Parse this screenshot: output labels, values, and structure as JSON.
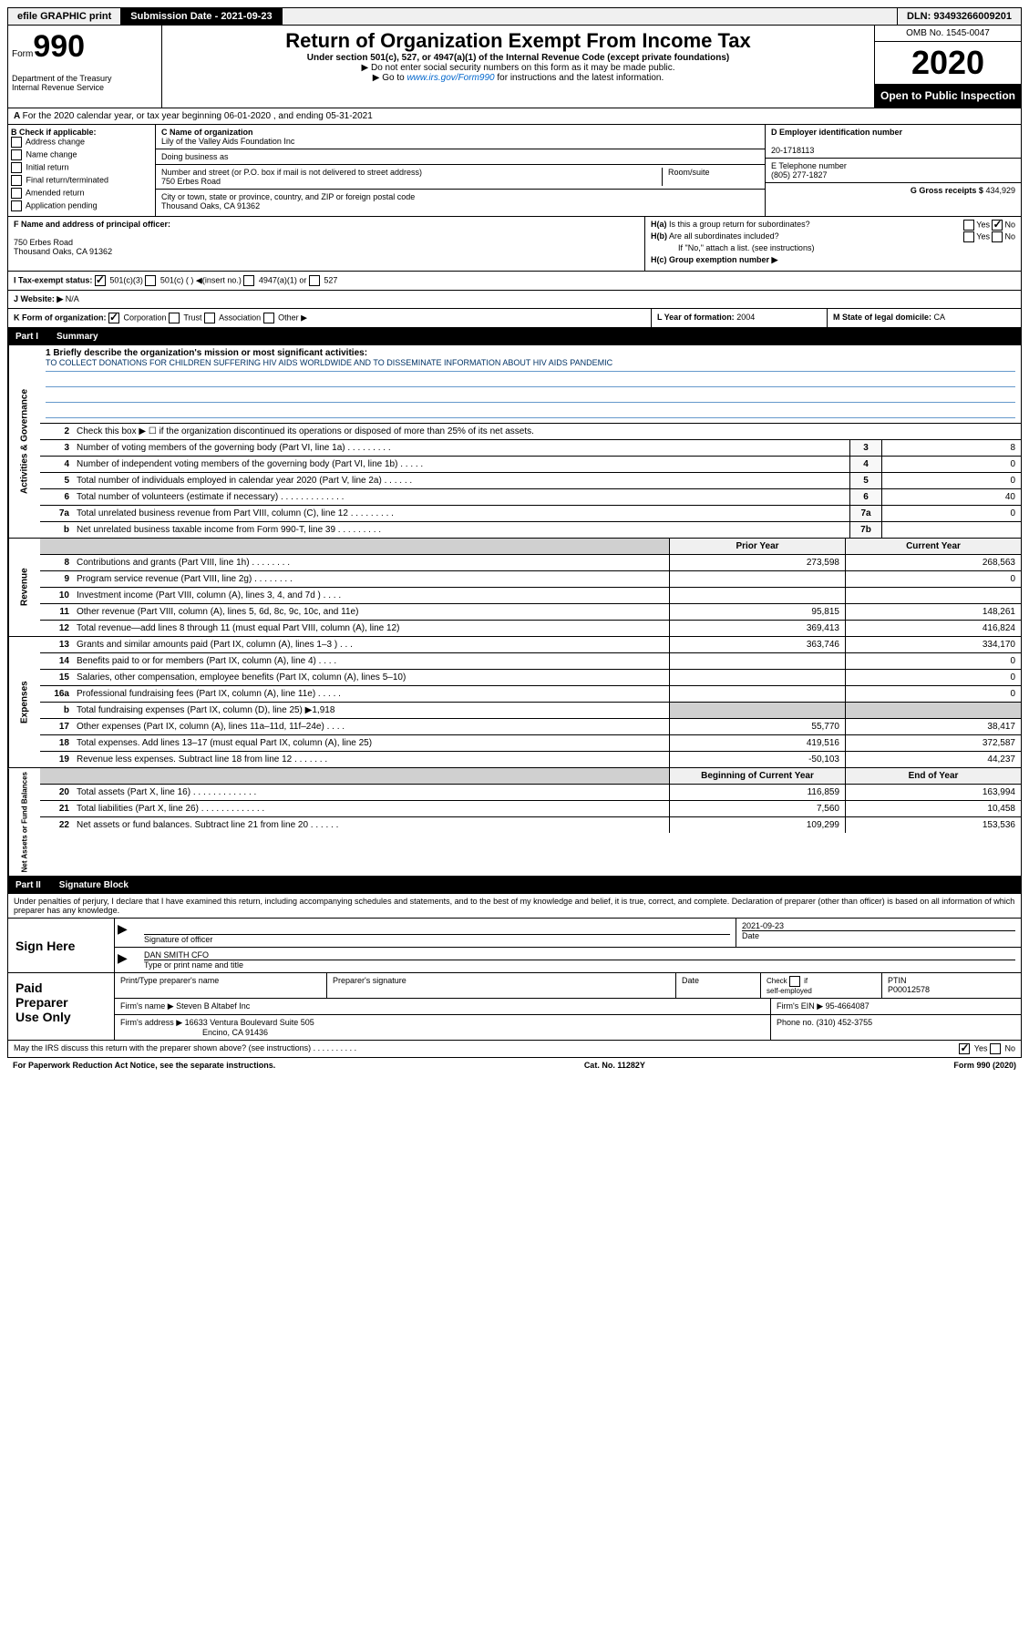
{
  "topbar": {
    "efile": "efile GRAPHIC print",
    "submission": "Submission Date - 2021-09-23",
    "dln": "DLN: 93493266009201"
  },
  "header": {
    "form_prefix": "Form",
    "form_no": "990",
    "dept": "Department of the Treasury\nInternal Revenue Service",
    "title": "Return of Organization Exempt From Income Tax",
    "sub1": "Under section 501(c), 527, or 4947(a)(1) of the Internal Revenue Code (except private foundations)",
    "sub2": "▶ Do not enter social security numbers on this form as it may be made public.",
    "sub3_pre": "▶ Go to ",
    "sub3_link": "www.irs.gov/Form990",
    "sub3_post": " for instructions and the latest information.",
    "omb": "OMB No. 1545-0047",
    "year": "2020",
    "inspect": "Open to Public Inspection"
  },
  "line_a": "For the 2020 calendar year, or tax year beginning 06-01-2020    , and ending 05-31-2021",
  "col_b": {
    "title": "B Check if applicable:",
    "opts": [
      "Address change",
      "Name change",
      "Initial return",
      "Final return/terminated",
      "Amended return",
      "Application pending"
    ]
  },
  "col_c": {
    "c_lbl": "C Name of organization",
    "c_val": "Lily of the Valley Aids Foundation Inc",
    "dba": "Doing business as",
    "addr_lbl": "Number and street (or P.O. box if mail is not delivered to street address)",
    "room": "Room/suite",
    "addr_val": "750 Erbes Road",
    "city_lbl": "City or town, state or province, country, and ZIP or foreign postal code",
    "city_val": "Thousand Oaks, CA  91362"
  },
  "col_d": {
    "d_lbl": "D Employer identification number",
    "d_val": "20-1718113",
    "e_lbl": "E Telephone number",
    "e_val": "(805) 277-1827",
    "g_lbl": "G Gross receipts $",
    "g_val": "434,929"
  },
  "col_f": {
    "lbl": "F  Name and address of principal officer:",
    "line1": "750 Erbes Road",
    "line2": "Thousand Oaks, CA  91362"
  },
  "col_h": {
    "ha": "H(a)  Is this a group return for subordinates?",
    "hb": "H(b)  Are all subordinates included?",
    "hb_note": "If \"No,\" attach a list. (see instructions)",
    "hc": "H(c)  Group exemption number ▶"
  },
  "row_i": {
    "lbl": "I    Tax-exempt status:",
    "opts": "501(c)(3)        501(c) (  ) ◀(insert no.)        4947(a)(1) or        527"
  },
  "row_j": {
    "lbl": "J   Website: ▶",
    "val": "N/A"
  },
  "row_k": {
    "lbl": "K Form of organization:",
    "opts": "Corporation       Trust       Association       Other ▶",
    "l_lbl": "L Year of formation:",
    "l_val": "2004",
    "m_lbl": "M State of legal domicile:",
    "m_val": "CA"
  },
  "part1": {
    "pt": "Part I",
    "title": "Summary"
  },
  "mission": {
    "lbl": "1  Briefly describe the organization's mission or most significant activities:",
    "text": "TO COLLECT DONATIONS FOR CHILDREN SUFFERING HIV AIDS WORLDWIDE AND TO DISSEMINATE INFORMATION ABOUT HIV AIDS PANDEMIC"
  },
  "governance": {
    "label": "Activities & Governance",
    "line2": "Check this box ▶ ☐  if the organization discontinued its operations or disposed of more than 25% of its net assets.",
    "rows": [
      {
        "n": "3",
        "d": "Number of voting members of the governing body (Part VI, line 1a)  .  .  .  .  .  .  .  .  .",
        "box": "3",
        "v": "8"
      },
      {
        "n": "4",
        "d": "Number of independent voting members of the governing body (Part VI, line 1b)   .  .  .  .  .",
        "box": "4",
        "v": "0"
      },
      {
        "n": "5",
        "d": "Total number of individuals employed in calendar year 2020 (Part V, line 2a)    .  .  .  .  .  .",
        "box": "5",
        "v": "0"
      },
      {
        "n": "6",
        "d": "Total number of volunteers (estimate if necessary)    .  .  .  .  .  .  .  .  .  .  .  .  .",
        "box": "6",
        "v": "40"
      },
      {
        "n": "7a",
        "d": "Total unrelated business revenue from Part VIII, column (C), line 12  .  .  .  .  .  .  .  .  .",
        "box": "7a",
        "v": "0"
      },
      {
        "n": "b",
        "d": "Net unrelated business taxable income from Form 990-T, line 39   .  .  .  .  .  .  .  .  .",
        "box": "7b",
        "v": ""
      }
    ]
  },
  "revenue": {
    "label": "Revenue",
    "header": {
      "prior": "Prior Year",
      "current": "Current Year"
    },
    "rows": [
      {
        "n": "8",
        "d": "Contributions and grants (Part VIII, line 1h)   .  .  .  .  .  .  .  .",
        "p": "273,598",
        "c": "268,563"
      },
      {
        "n": "9",
        "d": "Program service revenue (Part VIII, line 2g)   .  .  .  .  .  .  .  .",
        "p": "",
        "c": "0"
      },
      {
        "n": "10",
        "d": "Investment income (Part VIII, column (A), lines 3, 4, and 7d )   .  .  .  .",
        "p": "",
        "c": ""
      },
      {
        "n": "11",
        "d": "Other revenue (Part VIII, column (A), lines 5, 6d, 8c, 9c, 10c, and 11e)",
        "p": "95,815",
        "c": "148,261"
      },
      {
        "n": "12",
        "d": "Total revenue—add lines 8 through 11 (must equal Part VIII, column (A), line 12)",
        "p": "369,413",
        "c": "416,824"
      }
    ]
  },
  "expenses": {
    "label": "Expenses",
    "rows": [
      {
        "n": "13",
        "d": "Grants and similar amounts paid (Part IX, column (A), lines 1–3 )  .  .  .",
        "p": "363,746",
        "c": "334,170"
      },
      {
        "n": "14",
        "d": "Benefits paid to or for members (Part IX, column (A), line 4)   .  .  .  .",
        "p": "",
        "c": "0"
      },
      {
        "n": "15",
        "d": "Salaries, other compensation, employee benefits (Part IX, column (A), lines 5–10)",
        "p": "",
        "c": "0"
      },
      {
        "n": "16a",
        "d": "Professional fundraising fees (Part IX, column (A), line 11e)   .  .  .  .  .",
        "p": "",
        "c": "0"
      },
      {
        "n": "b",
        "d": "Total fundraising expenses (Part IX, column (D), line 25) ▶1,918",
        "p": "shaded",
        "c": "shaded"
      },
      {
        "n": "17",
        "d": "Other expenses (Part IX, column (A), lines 11a–11d, 11f–24e)  .  .  .  .",
        "p": "55,770",
        "c": "38,417"
      },
      {
        "n": "18",
        "d": "Total expenses. Add lines 13–17 (must equal Part IX, column (A), line 25)",
        "p": "419,516",
        "c": "372,587"
      },
      {
        "n": "19",
        "d": "Revenue less expenses. Subtract line 18 from line 12  .  .  .  .  .  .  .",
        "p": "-50,103",
        "c": "44,237"
      }
    ]
  },
  "netassets": {
    "label": "Net Assets or Fund Balances",
    "header": {
      "prior": "Beginning of Current Year",
      "current": "End of Year"
    },
    "rows": [
      {
        "n": "20",
        "d": "Total assets (Part X, line 16)  .  .  .  .  .  .  .  .  .  .  .  .  .",
        "p": "116,859",
        "c": "163,994"
      },
      {
        "n": "21",
        "d": "Total liabilities (Part X, line 26)  .  .  .  .  .  .  .  .  .  .  .  .  .",
        "p": "7,560",
        "c": "10,458"
      },
      {
        "n": "22",
        "d": "Net assets or fund balances. Subtract line 21 from line 20  .  .  .  .  .  .",
        "p": "109,299",
        "c": "153,536"
      }
    ]
  },
  "part2": {
    "pt": "Part II",
    "title": "Signature Block"
  },
  "declare": "Under penalties of perjury, I declare that I have examined this return, including accompanying schedules and statements, and to the best of my knowledge and belief, it is true, correct, and complete. Declaration of preparer (other than officer) is based on all information of which preparer has any knowledge.",
  "sign": {
    "label": "Sign Here",
    "sig_lbl": "Signature of officer",
    "date": "2021-09-23",
    "date_lbl": "Date",
    "name": "DAN SMITH  CFO",
    "name_lbl": "Type or print name and title"
  },
  "prep": {
    "label": "Paid Preparer Use Only",
    "h1": "Print/Type preparer's name",
    "h2": "Preparer's signature",
    "h3": "Date",
    "h4_top": "Check ☐ if self-employed",
    "h5_top": "PTIN",
    "h5_val": "P00012578",
    "firm_lbl": "Firm's name      ▶",
    "firm_val": "Steven B Altabef Inc",
    "ein_lbl": "Firm's EIN ▶",
    "ein_val": "95-4664087",
    "addr_lbl": "Firm's address ▶",
    "addr_val": "16633 Ventura Boulevard Suite 505",
    "addr_val2": "Encino, CA  91436",
    "phone_lbl": "Phone no.",
    "phone_val": "(310) 452-3755"
  },
  "discuss": "May the IRS discuss this return with the preparer shown above? (see instructions)   .  .  .  .  .  .  .  .  .  .",
  "footer": {
    "pra": "For Paperwork Reduction Act Notice, see the separate instructions.",
    "cat": "Cat. No. 11282Y",
    "form": "Form 990 (2020)"
  }
}
